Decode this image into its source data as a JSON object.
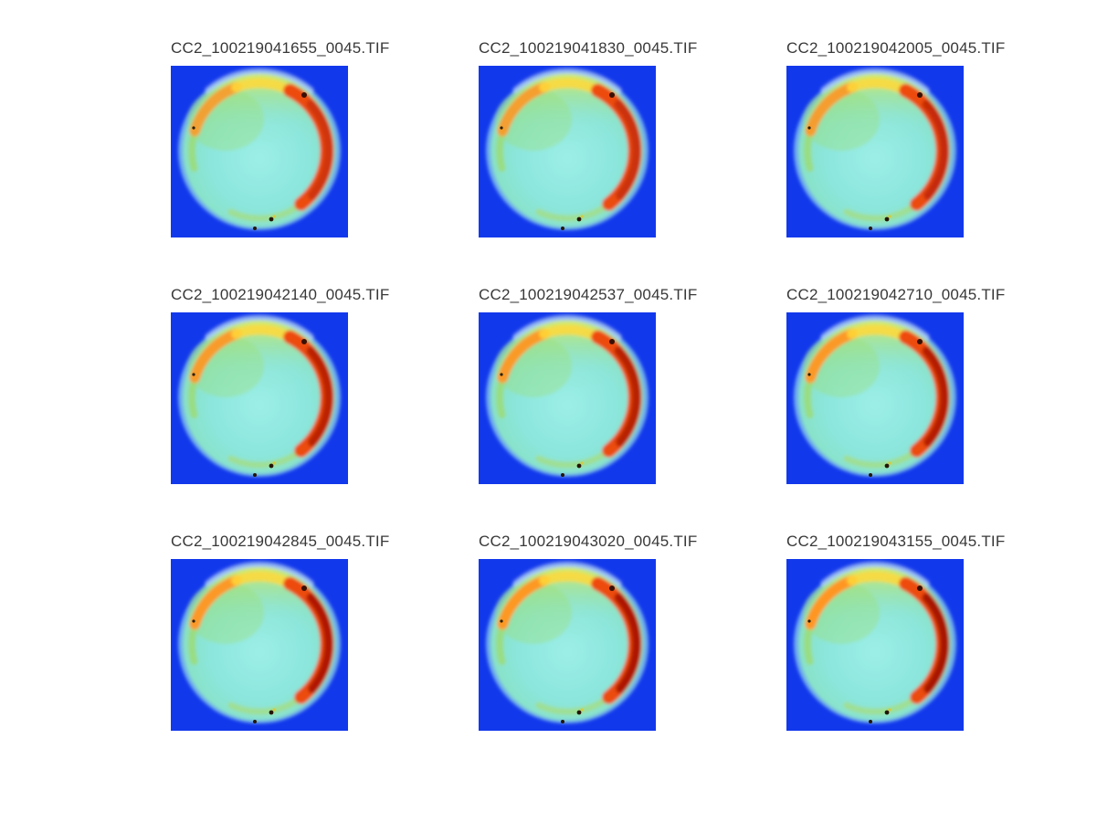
{
  "figure": {
    "background": "#ffffff",
    "title_color": "#383838"
  },
  "chart_data": {
    "type": "heatmap",
    "colormap": "jet",
    "grid": {
      "rows": 3,
      "cols": 3
    },
    "description": "3x3 montage of circular-sample TIFF frames rendered with a jet colormap on a blue background; a red/dark-red hotspot crescent along the upper-right rim intensifies across successive frames.",
    "subplots": [
      {
        "title": "CC2_100219041655_0045.TIF",
        "hotspot_intensity": 0.4
      },
      {
        "title": "CC2_100219041830_0045.TIF",
        "hotspot_intensity": 0.48
      },
      {
        "title": "CC2_100219042005_0045.TIF",
        "hotspot_intensity": 0.55
      },
      {
        "title": "CC2_100219042140_0045.TIF",
        "hotspot_intensity": 0.7
      },
      {
        "title": "CC2_100219042537_0045.TIF",
        "hotspot_intensity": 0.76
      },
      {
        "title": "CC2_100219042710_0045.TIF",
        "hotspot_intensity": 0.8
      },
      {
        "title": "CC2_100219042845_0045.TIF",
        "hotspot_intensity": 0.86
      },
      {
        "title": "CC2_100219043020_0045.TIF",
        "hotspot_intensity": 0.92
      },
      {
        "title": "CC2_100219043155_0045.TIF",
        "hotspot_intensity": 1.0
      }
    ],
    "palette": {
      "background_blue": "#1238ec",
      "halo_blue": "#86c8ee",
      "halo_top_light": "#d2ecf6",
      "disk_cyan": "#8ce6de",
      "rim_green": "#9cdc74",
      "band_yellow": "#ffd83a",
      "band_orange": "#ff9622",
      "crescent_red": "#f04206",
      "crescent_dark_red": "#a81200",
      "speck_dark": "#241505"
    }
  }
}
